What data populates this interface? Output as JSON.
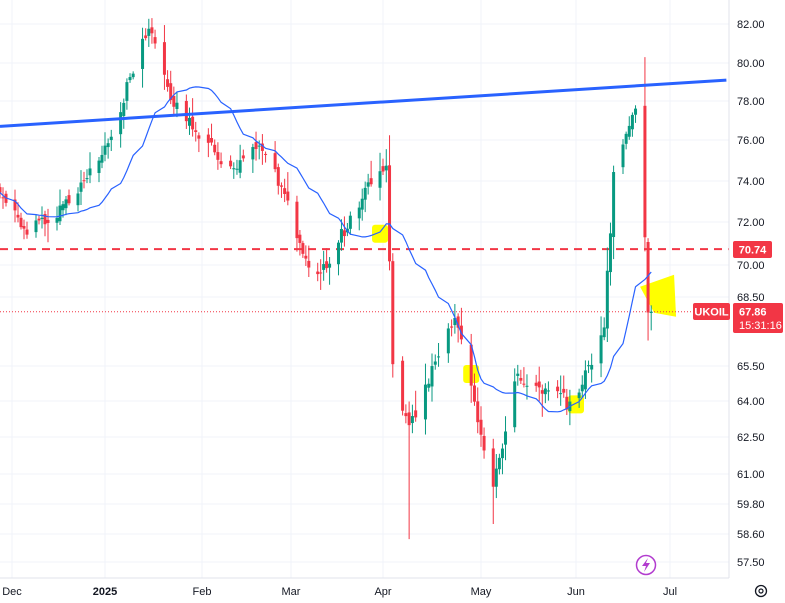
{
  "chart_data": {
    "type": "candlestick",
    "symbol": "UKOIL",
    "last_price": "67.86",
    "countdown": "15:31:16",
    "level_tag": "70.74",
    "y_ticks": [
      {
        "v": 82.0,
        "label": "82.00"
      },
      {
        "v": 80.0,
        "label": "80.00"
      },
      {
        "v": 78.0,
        "label": "78.00"
      },
      {
        "v": 76.0,
        "label": "76.00"
      },
      {
        "v": 74.0,
        "label": "74.00"
      },
      {
        "v": 72.0,
        "label": "72.00"
      },
      {
        "v": 70.0,
        "label": "70.00"
      },
      {
        "v": 68.5,
        "label": "68.50"
      },
      {
        "v": 65.5,
        "label": "65.50"
      },
      {
        "v": 64.0,
        "label": "64.00"
      },
      {
        "v": 62.5,
        "label": "62.50"
      },
      {
        "v": 61.0,
        "label": "61.00"
      },
      {
        "v": 59.8,
        "label": "59.80"
      },
      {
        "v": 58.6,
        "label": "58.60"
      },
      {
        "v": 57.5,
        "label": "57.50"
      }
    ],
    "x_ticks": [
      {
        "date": "2024-12-01",
        "label": "Dec",
        "bold": false
      },
      {
        "date": "2025-01-01",
        "label": "2025",
        "bold": true
      },
      {
        "date": "2025-02-01",
        "label": "Feb",
        "bold": false
      },
      {
        "date": "2025-03-01",
        "label": "Mar",
        "bold": false
      },
      {
        "date": "2025-04-01",
        "label": "Apr",
        "bold": false
      },
      {
        "date": "2025-05-01",
        "label": "May",
        "bold": false
      },
      {
        "date": "2025-06-01",
        "label": "Jun",
        "bold": false
      },
      {
        "date": "2025-07-01",
        "label": "Jul",
        "bold": false
      }
    ],
    "x_range": [
      "2024-11-27",
      "2025-07-19"
    ],
    "y_range": [
      57.5,
      83.0
    ],
    "trendline": {
      "from": {
        "date": "2024-11-27",
        "value": 76.7
      },
      "to": {
        "date": "2025-07-19",
        "value": 79.1
      },
      "color": "#2962ff"
    },
    "horizontal_level": {
      "value": 70.74,
      "color": "#f23645",
      "style": "dashed"
    },
    "last_price_line": {
      "value": 67.86,
      "color": "#f23645",
      "style": "dotted"
    },
    "moving_average_color": "#2962ff",
    "up_color": "#089981",
    "down_color": "#f23645",
    "highlight_color": "#ffff00",
    "highlights": [
      {
        "date": "2025-03-31",
        "value": 71.5
      },
      {
        "date": "2025-04-28",
        "value": 65.2
      },
      {
        "date": "2025-06-01",
        "value": 63.9
      },
      {
        "date": "2025-06-24",
        "value": 68.7
      }
    ],
    "anchor_points": [
      {
        "date": "2024-11-27",
        "value": 73.2
      },
      {
        "date": "2024-12-06",
        "value": 71.5
      },
      {
        "date": "2024-12-20",
        "value": 72.9
      },
      {
        "date": "2025-01-01",
        "value": 75.5
      },
      {
        "date": "2025-01-10",
        "value": 79.6
      },
      {
        "date": "2025-01-15",
        "value": 82.0
      },
      {
        "date": "2025-01-22",
        "value": 78.2
      },
      {
        "date": "2025-01-30",
        "value": 76.5
      },
      {
        "date": "2025-02-10",
        "value": 74.6
      },
      {
        "date": "2025-02-19",
        "value": 76.0
      },
      {
        "date": "2025-02-28",
        "value": 73.0
      },
      {
        "date": "2025-03-06",
        "value": 70.0
      },
      {
        "date": "2025-03-11",
        "value": 69.5
      },
      {
        "date": "2025-03-25",
        "value": 73.2
      },
      {
        "date": "2025-04-02",
        "value": 74.9
      },
      {
        "date": "2025-04-04",
        "value": 65.6
      },
      {
        "date": "2025-04-09",
        "value": 62.8
      },
      {
        "date": "2025-04-23",
        "value": 67.5
      },
      {
        "date": "2025-04-25",
        "value": 66.5
      },
      {
        "date": "2025-05-05",
        "value": 60.2
      },
      {
        "date": "2025-05-12",
        "value": 64.9
      },
      {
        "date": "2025-05-22",
        "value": 64.5
      },
      {
        "date": "2025-05-30",
        "value": 63.9
      },
      {
        "date": "2025-06-05",
        "value": 65.3
      },
      {
        "date": "2025-06-10",
        "value": 67.0
      },
      {
        "date": "2025-06-13",
        "value": 74.2
      },
      {
        "date": "2025-06-18",
        "value": 76.7
      },
      {
        "date": "2025-06-20",
        "value": 77.3
      },
      {
        "date": "2025-06-23",
        "value": 71.5
      },
      {
        "date": "2025-06-24",
        "value": 67.9
      },
      {
        "date": "2025-06-25",
        "value": 67.86
      }
    ]
  }
}
